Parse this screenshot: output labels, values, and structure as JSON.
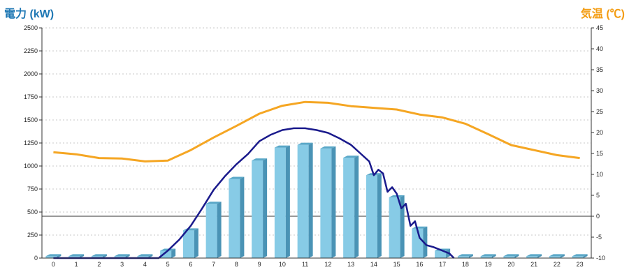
{
  "chart_data": {
    "type": "bar",
    "title": "",
    "y_left_label": "電力 (kW)",
    "y_right_label": "気温 (℃)",
    "categories": [
      "0",
      "1",
      "2",
      "3",
      "4",
      "5",
      "6",
      "7",
      "8",
      "9",
      "10",
      "11",
      "12",
      "13",
      "14",
      "15",
      "16",
      "17",
      "18",
      "19",
      "20",
      "21",
      "22",
      "23"
    ],
    "y_left_ticks": [
      "0",
      "250",
      "500",
      "750",
      "1000",
      "1250",
      "1500",
      "1750",
      "2000",
      "2250",
      "2500"
    ],
    "y_right_ticks": [
      "-10",
      "-5",
      "0",
      "5",
      "10",
      "15",
      "20",
      "25",
      "30",
      "35",
      "40",
      "45"
    ],
    "ylim_left": [
      0,
      2500
    ],
    "ylim_right": [
      -10,
      45
    ],
    "grid": true,
    "series": [
      {
        "kind": "bar",
        "axis": "left",
        "values": [
          20,
          20,
          20,
          20,
          20,
          80,
          300,
          590,
          860,
          1060,
          1200,
          1230,
          1190,
          1090,
          900,
          660,
          320,
          80,
          20,
          20,
          20,
          20,
          20,
          20
        ]
      },
      {
        "kind": "line",
        "axis": "right",
        "values": [
          15.3,
          14.8,
          13.9,
          13.8,
          13.1,
          13.3,
          15.8,
          18.8,
          21.6,
          24.5,
          26.4,
          27.3,
          27.1,
          26.3,
          25.9,
          25.5,
          24.3,
          23.6,
          22.1,
          19.6,
          17.0,
          15.8,
          14.6,
          13.9
        ]
      },
      {
        "kind": "line",
        "axis": "left",
        "x": [
          0,
          1,
          2,
          3,
          4,
          4.6,
          5,
          5.5,
          6,
          6.5,
          7,
          7.5,
          8,
          8.5,
          9,
          9.5,
          10,
          10.5,
          11,
          11.5,
          12,
          12.5,
          13,
          13.4,
          13.8,
          14,
          14.2,
          14.4,
          14.6,
          14.8,
          15,
          15.2,
          15.4,
          15.6,
          15.8,
          16,
          16.3,
          16.6,
          17,
          17.3,
          17.5
        ],
        "values": [
          0,
          0,
          0,
          0,
          0,
          0,
          80,
          200,
          350,
          540,
          740,
          890,
          1020,
          1130,
          1270,
          1340,
          1390,
          1410,
          1410,
          1390,
          1360,
          1300,
          1230,
          1140,
          1050,
          900,
          960,
          920,
          720,
          770,
          700,
          540,
          590,
          350,
          400,
          220,
          140,
          120,
          80,
          50,
          0
        ]
      }
    ]
  },
  "colors": {
    "bar_face": "#87cbe6",
    "bar_side": "#4a93b5",
    "bar_top": "#5aa8c8",
    "temp_line": "#f5a623",
    "power_line": "#1a1a8c",
    "grid": "#c8c8c8"
  }
}
